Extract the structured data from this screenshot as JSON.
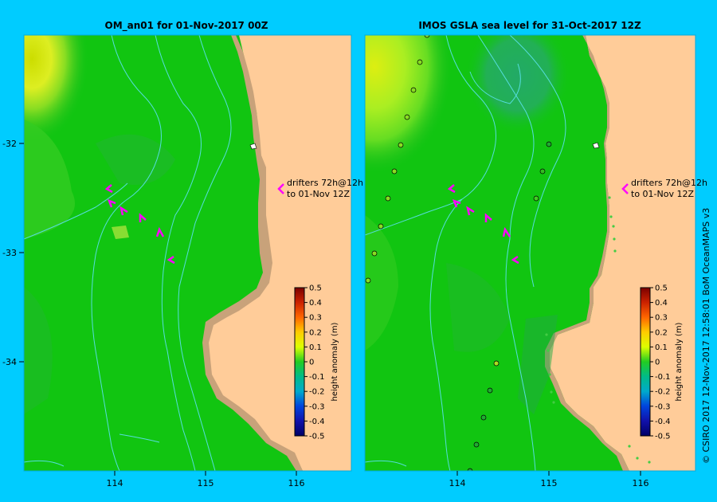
{
  "left_map": {
    "title": "OM_an01  for 01-Nov-2017 00Z",
    "annotation_line1": "drifters 72h@12h",
    "annotation_line2": "to 01-Nov 12Z"
  },
  "right_map": {
    "title": "IMOS GSLA sea level  for 31-Oct-2017 12Z",
    "annotation_line1": "drifters 72h@12h",
    "annotation_line2": "to 01-Nov 12Z"
  },
  "axes": {
    "lon_ticks": [
      "114",
      "115",
      "116"
    ],
    "lat_ticks": [
      "-32",
      "-33",
      "-34"
    ]
  },
  "colorbar": {
    "label": "height anomaly (m)",
    "ticks": [
      "0.5",
      "0.4",
      "0.3",
      "0.2",
      "0.1",
      "0",
      "-0.1",
      "-0.2",
      "-0.3",
      "-0.4",
      "-0.5"
    ]
  },
  "copyright": "© CSIRO 2017   12-Nov-2017 12:58:01 BoM OceanMAPS v3",
  "colors": {
    "background": "#00ccff",
    "land": "#ffcc99",
    "shelf": "#c8a27a",
    "ocean_base": "#11c511",
    "contour": "#55dddd",
    "drifter": "#ff00ff"
  }
}
